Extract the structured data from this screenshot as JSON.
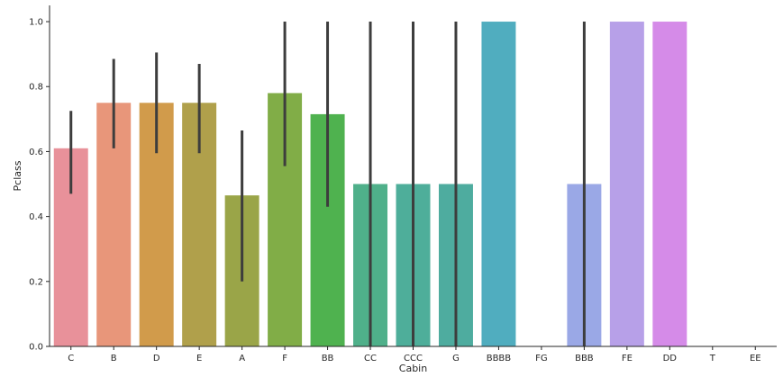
{
  "chart_data": {
    "type": "bar",
    "title": "",
    "xlabel": "Cabin",
    "ylabel": "Pclass",
    "ylim": [
      0,
      1.05
    ],
    "yticks": [
      0.0,
      0.2,
      0.4,
      0.6,
      0.8,
      1.0
    ],
    "ytick_labels": [
      "0.0",
      "0.2",
      "0.4",
      "0.6",
      "0.8",
      "1.0"
    ],
    "grid": false,
    "legend": "none",
    "categories": [
      "C",
      "B",
      "D",
      "E",
      "A",
      "F",
      "BB",
      "CC",
      "CCC",
      "G",
      "BBBB",
      "FG",
      "BBB",
      "FE",
      "DD",
      "T",
      "EE"
    ],
    "values": [
      0.61,
      0.75,
      0.75,
      0.75,
      0.465,
      0.78,
      0.715,
      0.5,
      0.5,
      0.5,
      1.0,
      0.0,
      0.5,
      1.0,
      1.0,
      0.0,
      0.0
    ],
    "error_bars": [
      [
        0.47,
        0.725
      ],
      [
        0.61,
        0.885
      ],
      [
        0.595,
        0.905
      ],
      [
        0.595,
        0.87
      ],
      [
        0.2,
        0.665
      ],
      [
        0.555,
        1.0
      ],
      [
        0.43,
        1.0
      ],
      [
        0.0,
        1.0
      ],
      [
        0.0,
        1.0
      ],
      [
        0.0,
        1.0
      ],
      null,
      null,
      [
        0.0,
        1.0
      ],
      null,
      null,
      null,
      null
    ],
    "colors": [
      "#e8919a",
      "#e8967a",
      "#d19b4b",
      "#b0a04b",
      "#9aa548",
      "#81ad47",
      "#4fb24f",
      "#4fb08a",
      "#4eae9a",
      "#4eac9f",
      "#50adbf",
      "#5fa8d8",
      "#9aa8e6",
      "#b7a0e8",
      "#d58be8",
      "#e58ad4",
      "#e88fb6"
    ],
    "error_color": "#3d3d3d"
  }
}
